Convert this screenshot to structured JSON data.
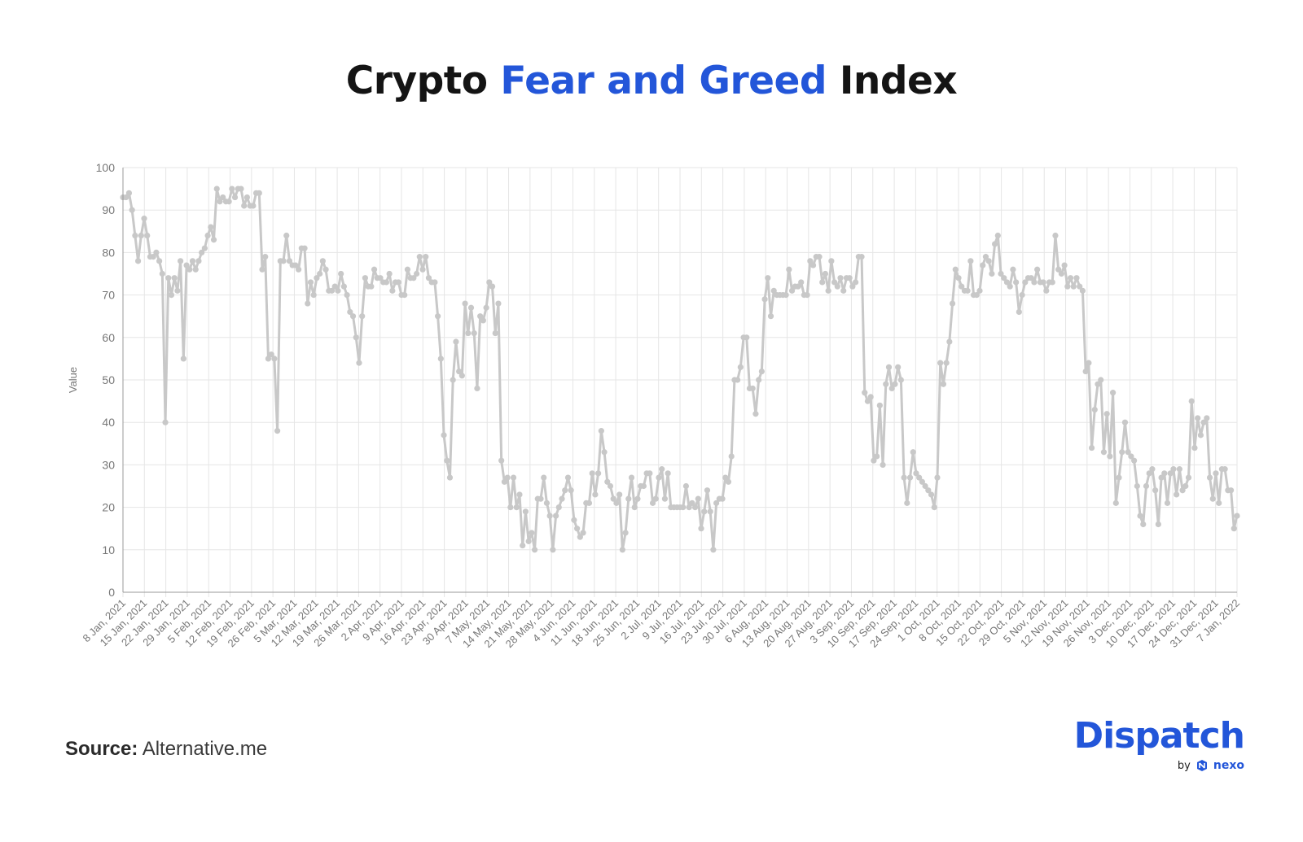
{
  "title": {
    "part1": "Crypto ",
    "accent": "Fear and Greed",
    "part2": " Index"
  },
  "source": {
    "label": "Source:",
    "text": "Alternative.me"
  },
  "brand": {
    "name": "Dispatch",
    "by": "by",
    "partner": "nexo",
    "color": "#2356d9"
  },
  "chart_data": {
    "type": "line",
    "title": "",
    "xlabel": "",
    "ylabel": "Value",
    "ylim": [
      0,
      100
    ],
    "yticks": [
      0,
      10,
      20,
      30,
      40,
      50,
      60,
      70,
      80,
      90,
      100
    ],
    "grid": true,
    "line_color": "#c8c8c8",
    "x_tick_labels": [
      "8 Jan, 2021",
      "15 Jan, 2021",
      "22 Jan, 2021",
      "29 Jan, 2021",
      "5 Feb, 2021",
      "12 Feb, 2021",
      "19 Feb, 2021",
      "26 Feb, 2021",
      "5 Mar, 2021",
      "12 Mar, 2021",
      "19 Mar, 2021",
      "26 Mar, 2021",
      "2 Apr, 2021",
      "9 Apr, 2021",
      "16 Apr, 2021",
      "23 Apr, 2021",
      "30 Apr, 2021",
      "7 May, 2021",
      "14 May, 2021",
      "21 May, 2021",
      "28 May, 2021",
      "4 Jun, 2021",
      "11 Jun, 2021",
      "18 Jun, 2021",
      "25 Jun, 2021",
      "2 Jul, 2021",
      "9 Jul, 2021",
      "16 Jul, 2021",
      "23 Jul, 2021",
      "30 Jul, 2021",
      "6 Aug, 2021",
      "13 Aug, 2021",
      "20 Aug, 2021",
      "27 Aug, 2021",
      "3 Sep, 2021",
      "10 Sep, 2021",
      "17 Sep, 2021",
      "24 Sep, 2021",
      "1 Oct, 2021",
      "8 Oct, 2021",
      "15 Oct, 2021",
      "22 Oct, 2021",
      "29 Oct, 2021",
      "5 Nov, 2021",
      "12 Nov, 2021",
      "19 Nov, 2021",
      "26 Nov, 2021",
      "3 Dec, 2021",
      "10 Dec, 2021",
      "17 Dec, 2021",
      "24 Dec, 2021",
      "31 Dec, 2021",
      "7 Jan, 2022"
    ],
    "start_date": "8 Jan, 2021",
    "series": [
      {
        "values": [
          93,
          93,
          94,
          90,
          84,
          78,
          84,
          88,
          84,
          79,
          79,
          80,
          78,
          75,
          40,
          74,
          70,
          74,
          71,
          78,
          55,
          77,
          76,
          78,
          76,
          78,
          80,
          81,
          84,
          86,
          83,
          95,
          92,
          93,
          92,
          92,
          95,
          93,
          95,
          95,
          91,
          93,
          91,
          91,
          94,
          94,
          76,
          79,
          55,
          56,
          55,
          38,
          78,
          78,
          84,
          78,
          77,
          77,
          76,
          81,
          81,
          68,
          73,
          70,
          74,
          75,
          78,
          76,
          71,
          71,
          72,
          71,
          75,
          72,
          70,
          66,
          65,
          60,
          54,
          65,
          74,
          72,
          72,
          76,
          74,
          74,
          73,
          73,
          75,
          71,
          73,
          73,
          70,
          70,
          76,
          74,
          74,
          75,
          79,
          76,
          79,
          74,
          73,
          73,
          65,
          55,
          37,
          31,
          27,
          50,
          59,
          52,
          51,
          68,
          61,
          67,
          61,
          48,
          65,
          64,
          67,
          73,
          72,
          61,
          68,
          31,
          26,
          27,
          20,
          27,
          20,
          23,
          11,
          19,
          12,
          14,
          10,
          22,
          22,
          27,
          21,
          18,
          10,
          18,
          20,
          22,
          24,
          27,
          24,
          17,
          15,
          13,
          14,
          21,
          21,
          28,
          23,
          28,
          38,
          33,
          26,
          25,
          22,
          21,
          23,
          10,
          14,
          22,
          27,
          20,
          22,
          25,
          25,
          28,
          28,
          21,
          22,
          27,
          29,
          22,
          28,
          20,
          20,
          20,
          20,
          20,
          25,
          20,
          21,
          20,
          22,
          15,
          19,
          24,
          19,
          10,
          21,
          22,
          22,
          27,
          26,
          32,
          50,
          50,
          53,
          60,
          60,
          48,
          48,
          42,
          50,
          52,
          69,
          74,
          65,
          71,
          70,
          70,
          70,
          70,
          76,
          71,
          72,
          72,
          73,
          70,
          70,
          78,
          77,
          79,
          79,
          73,
          75,
          71,
          78,
          73,
          72,
          74,
          71,
          74,
          74,
          72,
          73,
          79,
          79,
          47,
          45,
          46,
          31,
          32,
          44,
          30,
          49,
          53,
          48,
          49,
          53,
          50,
          27,
          21,
          27,
          33,
          28,
          27,
          26,
          25,
          24,
          23,
          20,
          27,
          54,
          49,
          54,
          59,
          68,
          76,
          74,
          72,
          71,
          71,
          78,
          70,
          70,
          71,
          77,
          79,
          78,
          75,
          82,
          84,
          75,
          74,
          73,
          72,
          76,
          73,
          66,
          70,
          73,
          74,
          74,
          73,
          76,
          73,
          73,
          71,
          73,
          73,
          84,
          76,
          75,
          77,
          72,
          74,
          72,
          74,
          72,
          71,
          52,
          54,
          34,
          43,
          49,
          50,
          33,
          42,
          32,
          47,
          21,
          27,
          33,
          40,
          33,
          32,
          31,
          25,
          18,
          16,
          25,
          28,
          29,
          24,
          16,
          27,
          28,
          21,
          28,
          29,
          23,
          29,
          24,
          25,
          27,
          45,
          34,
          41,
          37,
          40,
          41,
          27,
          22,
          28,
          21,
          29,
          29,
          24,
          24,
          15,
          18
        ]
      }
    ]
  }
}
